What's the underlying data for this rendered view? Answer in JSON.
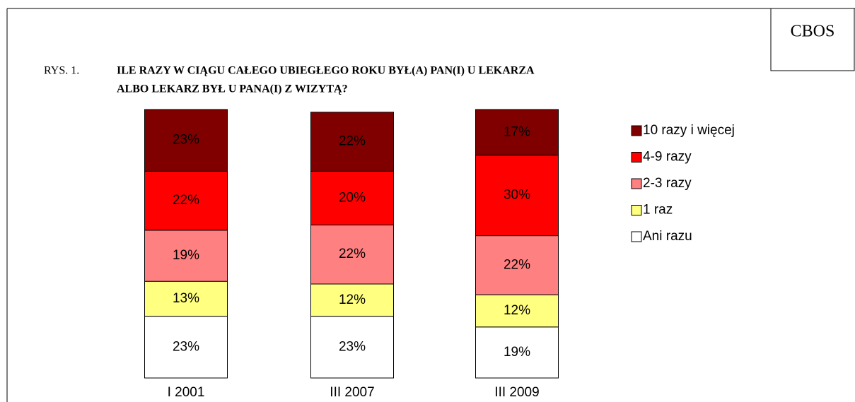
{
  "chart_data": {
    "type": "stacked_bar",
    "brand": "CBOS",
    "figure_label": "RYS. 1.",
    "title_lines": [
      "ILE RAZY W CIĄGU CAŁEGO UBIEGŁEGO ROKU BYŁ(A) PAN(I) U LEKARZA",
      "ALBO LEKARZ BYŁ U PANA(I) Z WIZYTĄ?"
    ],
    "categories": [
      "I 2001",
      "III 2007",
      "III 2009"
    ],
    "ylim": [
      0,
      100
    ],
    "series": [
      {
        "name": "Ani razu",
        "color": "#ffffff",
        "values": [
          23,
          23,
          19
        ],
        "value_labels": [
          "23%",
          "23%",
          "19%"
        ]
      },
      {
        "name": "1 raz",
        "color": "#ffff80",
        "values": [
          13,
          12,
          12
        ],
        "value_labels": [
          "13%",
          "12%",
          "12%"
        ]
      },
      {
        "name": "2-3 razy",
        "color": "#ff8080",
        "values": [
          19,
          22,
          22
        ],
        "value_labels": [
          "19%",
          "22%",
          "22%"
        ]
      },
      {
        "name": "4-9 razy",
        "color": "#ff0000",
        "values": [
          22,
          20,
          30
        ],
        "value_labels": [
          "22%",
          "20%",
          "30%"
        ]
      },
      {
        "name": "10 razy i więcej",
        "color": "#800000",
        "values": [
          23,
          22,
          17
        ],
        "value_labels": [
          "23%",
          "22%",
          "17%"
        ]
      }
    ]
  }
}
